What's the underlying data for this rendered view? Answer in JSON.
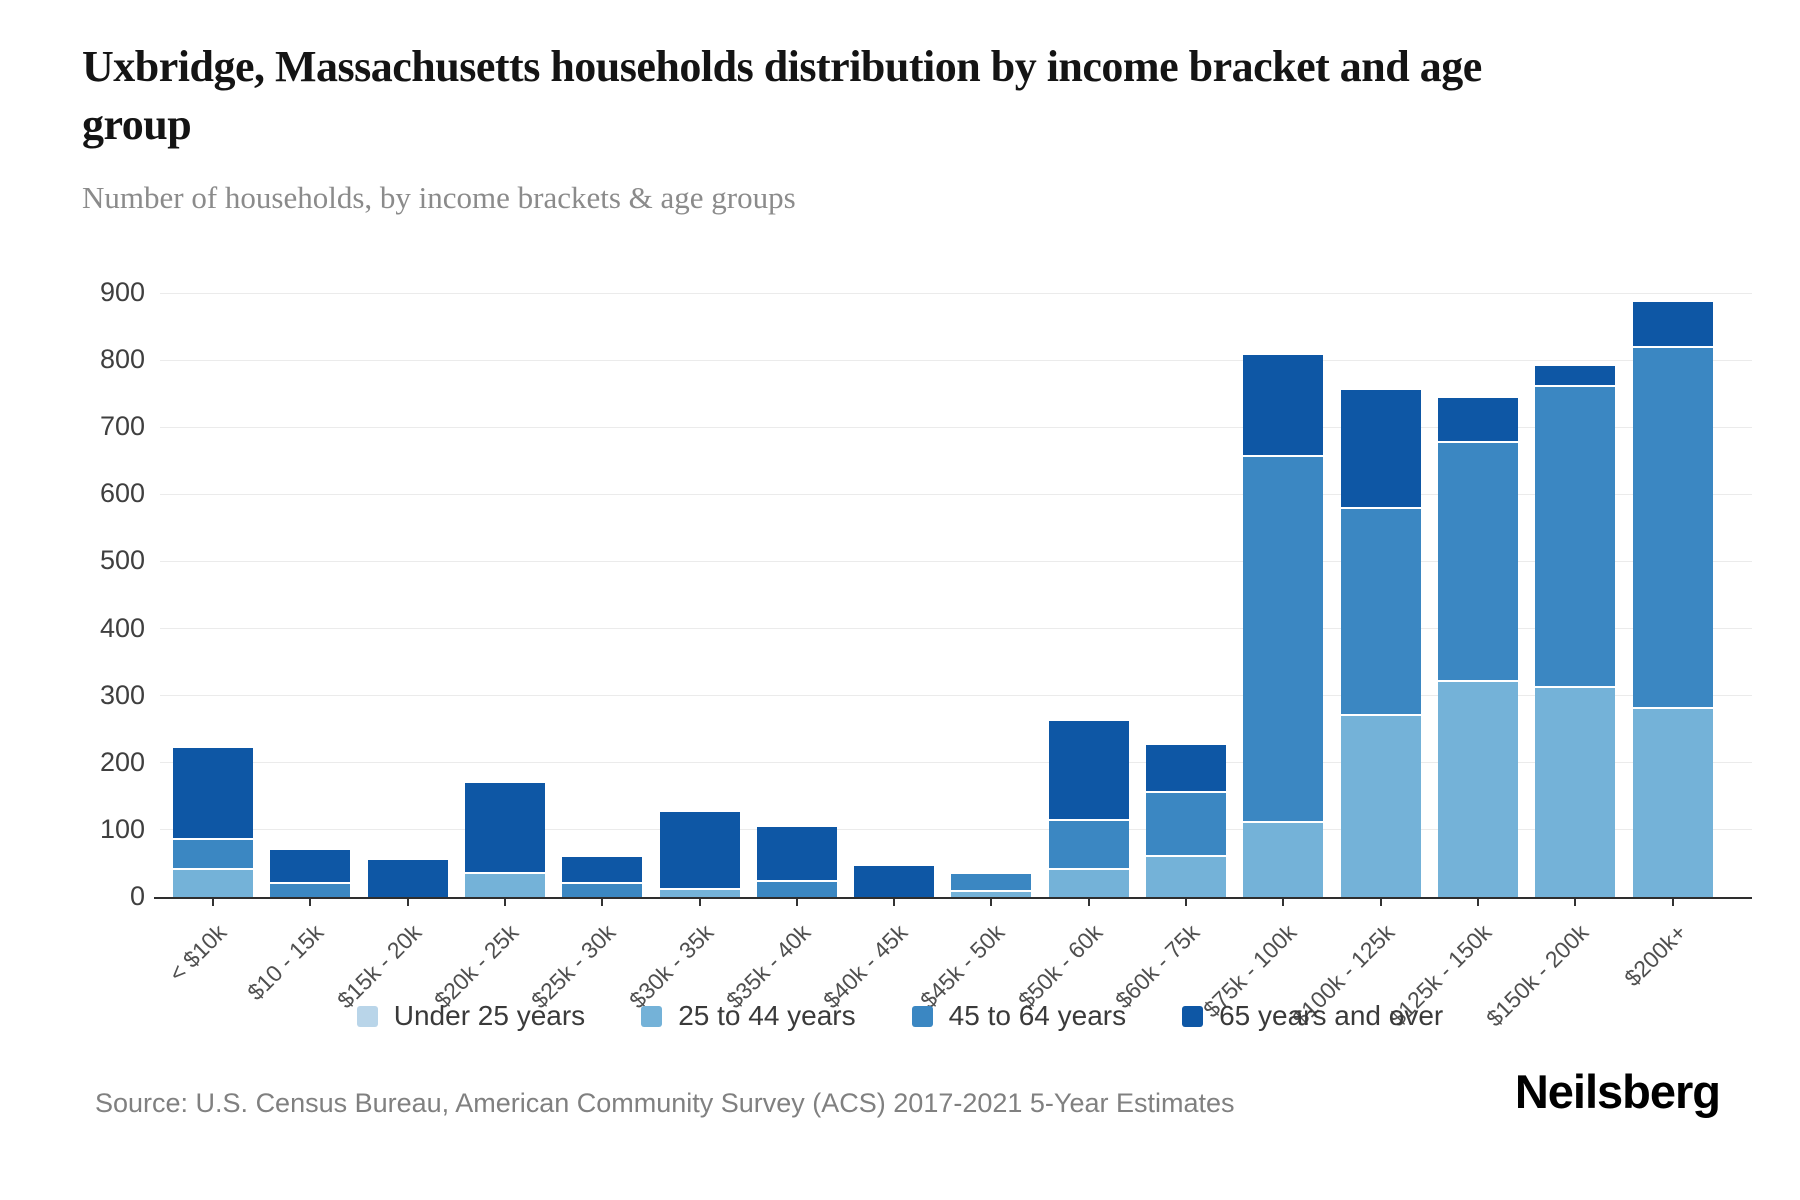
{
  "header": {
    "title": "Uxbridge, Massachusetts households distribution by income bracket and age group",
    "subtitle": "Number of households, by income brackets & age groups"
  },
  "footer": {
    "source": "Source: U.S. Census Bureau, American Community Survey (ACS) 2017-2021 5-Year Estimates",
    "brand": "Neilsberg"
  },
  "chart_data": {
    "type": "bar",
    "stacked": true,
    "title": "Uxbridge, Massachusetts households distribution by income bracket and age group",
    "subtitle": "Number of households, by income brackets & age groups",
    "xlabel": "",
    "ylabel": "Number of households",
    "ylim": [
      0,
      900
    ],
    "yticks": [
      0,
      100,
      200,
      300,
      400,
      500,
      600,
      700,
      800,
      900
    ],
    "grid": true,
    "legend_position": "bottom",
    "categories": [
      "< $10k",
      "$10 - 15k",
      "$15k - 20k",
      "$20k - 25k",
      "$25k - 30k",
      "$30k - 35k",
      "$35k - 40k",
      "$40k - 45k",
      "$45k - 50k",
      "$50k - 60k",
      "$60k - 75k",
      "$75k - 100k",
      "$100k - 125k",
      "$125k - 150k",
      "$150k - 200k",
      "$200k+"
    ],
    "series": [
      {
        "name": "Under 25 years",
        "color": "#b9d5e9",
        "values": [
          0,
          0,
          0,
          0,
          0,
          0,
          0,
          0,
          0,
          0,
          0,
          0,
          0,
          0,
          0,
          0
        ]
      },
      {
        "name": "25 to 44 years",
        "color": "#74b2d8",
        "values": [
          40,
          0,
          0,
          35,
          0,
          10,
          0,
          0,
          7,
          40,
          59,
          111,
          270,
          321,
          312,
          280
        ]
      },
      {
        "name": "45 to 64 years",
        "color": "#3b87c2",
        "values": [
          45,
          20,
          0,
          0,
          19,
          0,
          22,
          0,
          27,
          73,
          96,
          545,
          308,
          355,
          448,
          538
        ]
      },
      {
        "name": "65 years and over",
        "color": "#0e57a5",
        "values": [
          137,
          50,
          55,
          135,
          40,
          117,
          83,
          46,
          0,
          149,
          71,
          152,
          177,
          67,
          32,
          68
        ]
      }
    ],
    "totals": [
      222,
      70,
      55,
      170,
      59,
      127,
      105,
      46,
      34,
      262,
      226,
      808,
      743,
      755,
      792,
      886
    ]
  }
}
